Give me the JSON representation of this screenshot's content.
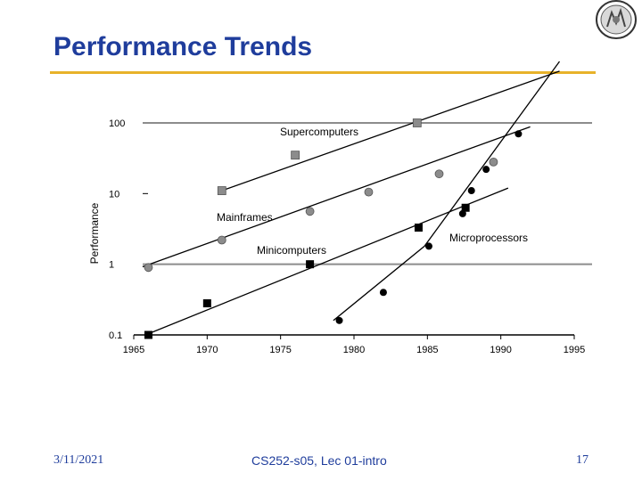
{
  "slide": {
    "title": "Performance Trends",
    "footer_date": "3/11/2021",
    "footer_course": "CS252-s05, Lec 01-intro",
    "page_number": "17"
  },
  "colors": {
    "title": "#1f3d9c",
    "rule": "#e8b22a",
    "gray_marker": "#8c8c8c",
    "gridline": "#8c8c8c"
  },
  "chart_data": {
    "type": "scatter",
    "title": "",
    "xlabel": "",
    "ylabel": "Performance",
    "yscale": "log",
    "xlim": [
      1965,
      1995
    ],
    "ylim": [
      0.1,
      100
    ],
    "x_ticks": [
      1965,
      1970,
      1975,
      1980,
      1985,
      1990,
      1995
    ],
    "y_ticks": [
      {
        "value": 0.1,
        "label": "0.1"
      },
      {
        "value": 1,
        "label": "1"
      },
      {
        "value": 10,
        "label": "10"
      },
      {
        "value": 100,
        "label": "100"
      }
    ],
    "series": [
      {
        "name": "Supercomputers",
        "marker": "square-gray",
        "points": [
          [
            1971,
            11
          ],
          [
            1976,
            35
          ],
          [
            1984.3,
            100
          ]
        ],
        "trend": [
          [
            1971,
            11
          ],
          [
            1994,
            540
          ]
        ]
      },
      {
        "name": "Mainframes",
        "marker": "circle-gray",
        "points": [
          [
            1966,
            0.9
          ],
          [
            1971,
            2.2
          ],
          [
            1977,
            5.6
          ],
          [
            1981,
            10.5
          ],
          [
            1985.8,
            19
          ],
          [
            1989.5,
            28
          ]
        ],
        "trend": [
          [
            1965.6,
            0.92
          ],
          [
            1992,
            88
          ]
        ]
      },
      {
        "name": "Minicomputers",
        "marker": "square-black",
        "points": [
          [
            1966,
            0.1
          ],
          [
            1970,
            0.28
          ],
          [
            1977,
            1
          ],
          [
            1984.4,
            3.3
          ],
          [
            1987.6,
            6.3
          ]
        ],
        "trend": [
          [
            1965.8,
            0.1
          ],
          [
            1990.5,
            12
          ]
        ]
      },
      {
        "name": "Microprocessors",
        "marker": "circle-black",
        "points": [
          [
            1979,
            0.16
          ],
          [
            1982,
            0.4
          ],
          [
            1985.1,
            1.8
          ],
          [
            1987.4,
            5.2
          ],
          [
            1988,
            11
          ],
          [
            1989,
            22
          ],
          [
            1991.2,
            70
          ]
        ],
        "trend": [
          [
            1978.6,
            0.16
          ],
          [
            1984.8,
            1.8
          ],
          [
            1994,
            740
          ]
        ]
      }
    ],
    "annotations": [
      {
        "text": "Supercomputers",
        "series": "Supercomputers"
      },
      {
        "text": "Mainframes",
        "series": "Mainframes"
      },
      {
        "text": "Minicomputers",
        "series": "Minicomputers"
      },
      {
        "text": "Microprocessors",
        "series": "Microprocessors"
      }
    ]
  }
}
